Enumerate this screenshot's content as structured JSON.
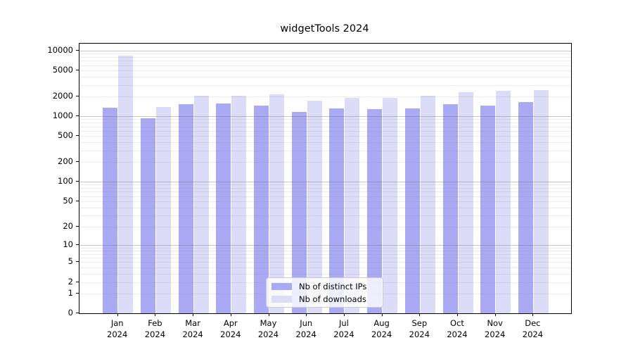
{
  "chart_data": {
    "type": "bar",
    "title": "widgetTools 2024",
    "year": "2024",
    "categories": [
      "Jan",
      "Feb",
      "Mar",
      "Apr",
      "May",
      "Jun",
      "Jul",
      "Aug",
      "Sep",
      "Oct",
      "Nov",
      "Dec"
    ],
    "series": [
      {
        "name": "Nb of distinct IPs",
        "color": "#a9a9f4",
        "values": [
          1360,
          940,
          1540,
          1560,
          1470,
          1160,
          1320,
          1280,
          1310,
          1540,
          1470,
          1630
        ]
      },
      {
        "name": "Nb of downloads",
        "color": "#dcdcf9",
        "values": [
          8470,
          1370,
          2070,
          2080,
          2140,
          1750,
          1900,
          1930,
          2050,
          2320,
          2430,
          2530
        ]
      }
    ],
    "y_scale": "log10(1+x)",
    "ylim": [
      0,
      12800
    ],
    "y_ticks": [
      10000,
      5000,
      2000,
      1000,
      500,
      200,
      100,
      50,
      20,
      10,
      5,
      2,
      1,
      0
    ],
    "grid": true,
    "legend_position": "lower center",
    "xlabel": "",
    "ylabel": ""
  }
}
